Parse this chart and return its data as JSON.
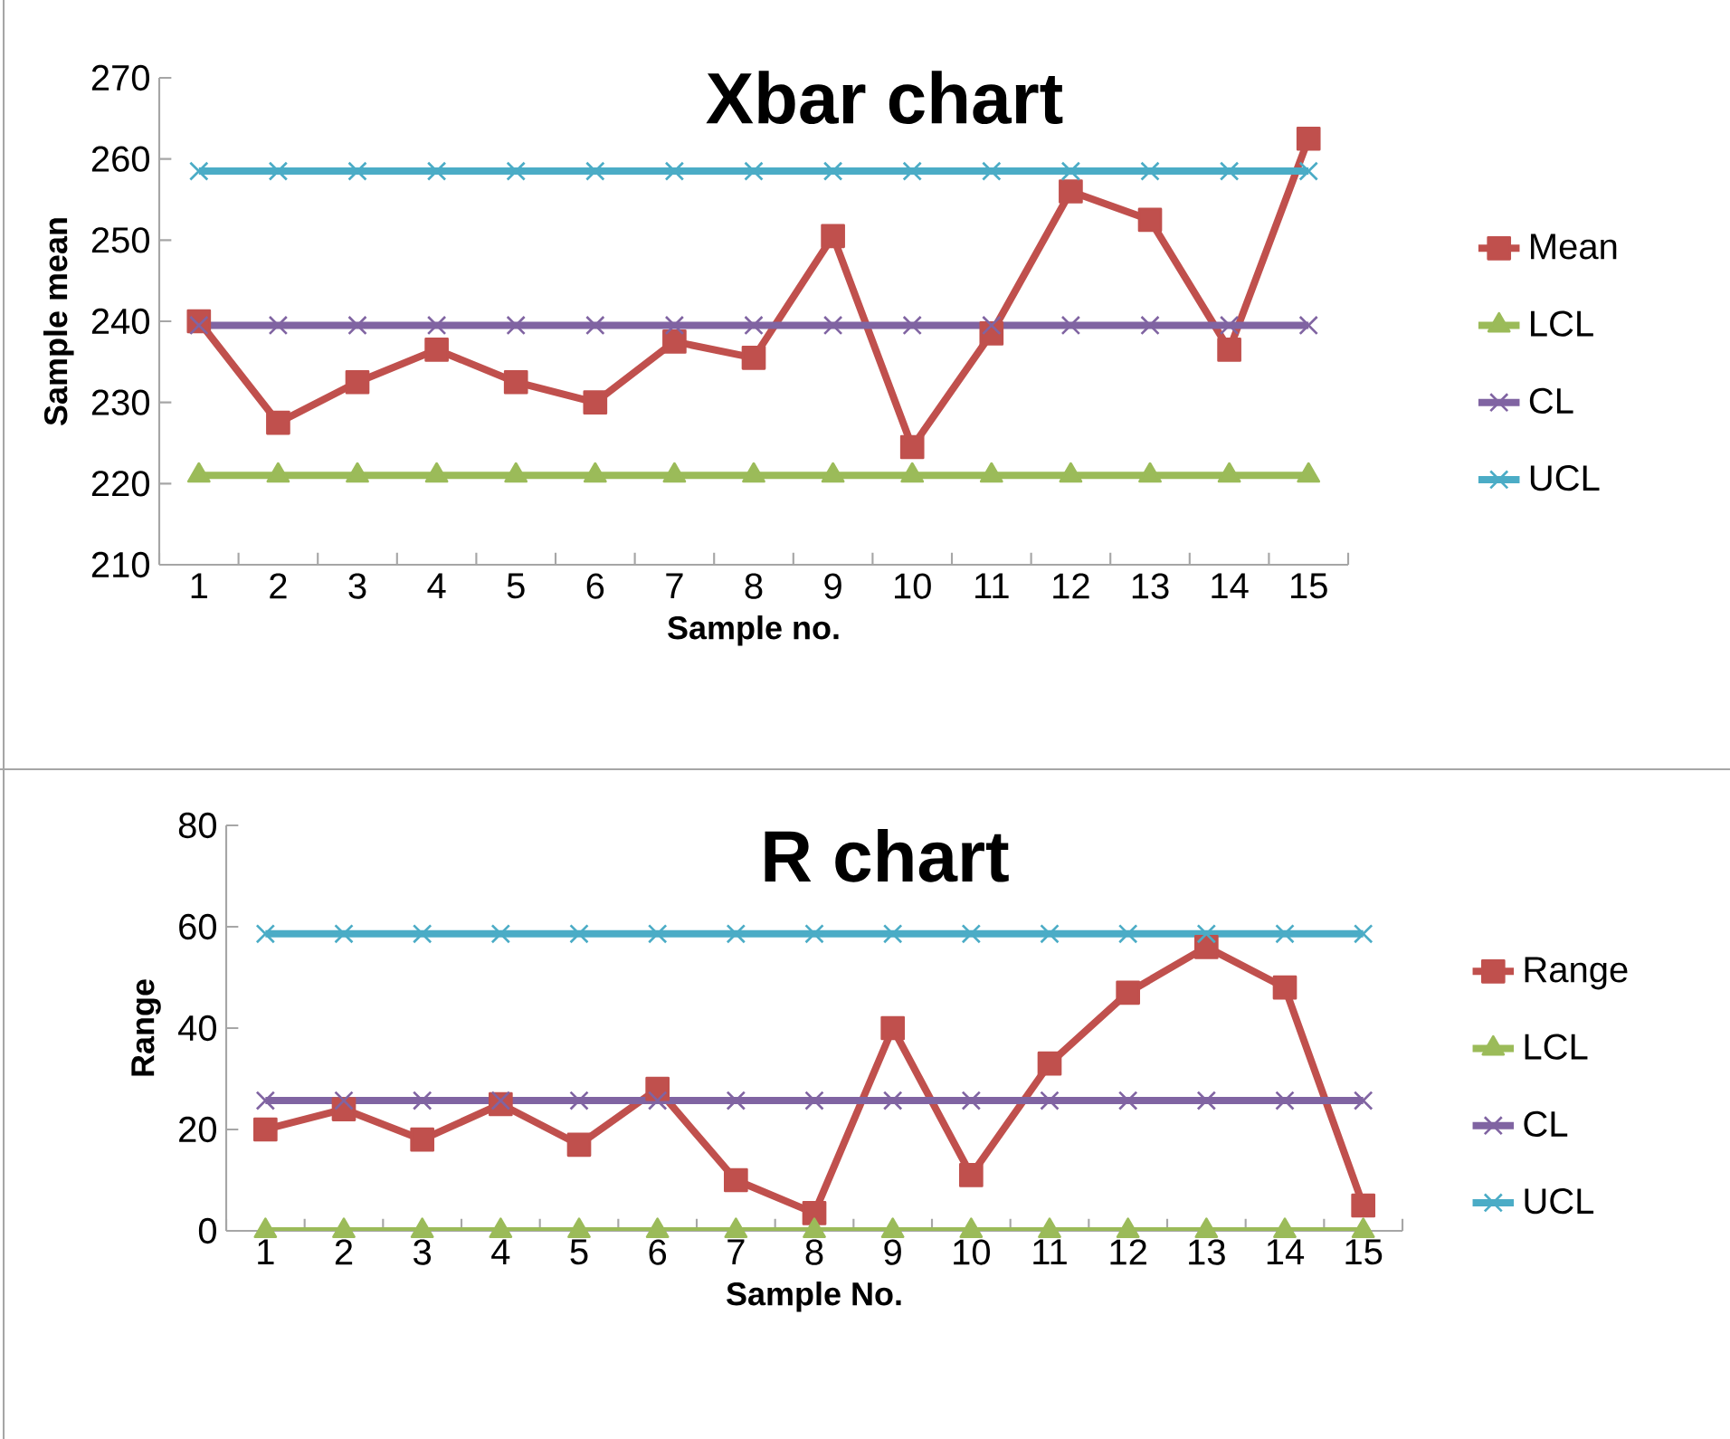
{
  "chart_data": [
    {
      "type": "line",
      "title": "Xbar chart",
      "xlabel": "Sample no.",
      "ylabel": "Sample mean",
      "categories": [
        "1",
        "2",
        "3",
        "4",
        "5",
        "6",
        "7",
        "8",
        "9",
        "10",
        "11",
        "12",
        "13",
        "14",
        "15"
      ],
      "ylim": [
        210,
        270
      ],
      "yticks": [
        210,
        220,
        230,
        240,
        250,
        260,
        270
      ],
      "grid": false,
      "legend": "right",
      "line_style": "solid",
      "series": [
        {
          "name": "Mean",
          "color": "#c0504d",
          "marker": "square",
          "values": [
            240,
            227.5,
            232.5,
            236.5,
            232.5,
            230,
            237.5,
            235.5,
            250.5,
            224.5,
            238.5,
            256,
            252.5,
            236.5,
            262.5
          ]
        },
        {
          "name": "LCL",
          "color": "#9bbb59",
          "marker": "triangle",
          "values": [
            221,
            221,
            221,
            221,
            221,
            221,
            221,
            221,
            221,
            221,
            221,
            221,
            221,
            221,
            221
          ]
        },
        {
          "name": "CL",
          "color": "#8064a2",
          "marker": "cross",
          "values": [
            239.5,
            239.5,
            239.5,
            239.5,
            239.5,
            239.5,
            239.5,
            239.5,
            239.5,
            239.5,
            239.5,
            239.5,
            239.5,
            239.5,
            239.5
          ]
        },
        {
          "name": "UCL",
          "color": "#4bacc6",
          "marker": "cross",
          "values": [
            258.5,
            258.5,
            258.5,
            258.5,
            258.5,
            258.5,
            258.5,
            258.5,
            258.5,
            258.5,
            258.5,
            258.5,
            258.5,
            258.5,
            258.5
          ]
        }
      ]
    },
    {
      "type": "line",
      "title": "R chart",
      "xlabel": "Sample No.",
      "ylabel": "Range",
      "categories": [
        "1",
        "2",
        "3",
        "4",
        "5",
        "6",
        "7",
        "8",
        "9",
        "10",
        "11",
        "12",
        "13",
        "14",
        "15"
      ],
      "ylim": [
        0,
        80
      ],
      "yticks": [
        0,
        20,
        40,
        60,
        80
      ],
      "grid": false,
      "legend": "right",
      "line_style": "solid",
      "series": [
        {
          "name": "Range",
          "color": "#c0504d",
          "marker": "square",
          "values": [
            20,
            24,
            18,
            25,
            17,
            28,
            10,
            3.5,
            40,
            11,
            33,
            47,
            56,
            48,
            5
          ]
        },
        {
          "name": "LCL",
          "color": "#9bbb59",
          "marker": "triangle",
          "values": [
            0,
            0,
            0,
            0,
            0,
            0,
            0,
            0,
            0,
            0,
            0,
            0,
            0,
            0,
            0
          ]
        },
        {
          "name": "CL",
          "color": "#8064a2",
          "marker": "cross",
          "values": [
            25.7,
            25.7,
            25.7,
            25.7,
            25.7,
            25.7,
            25.7,
            25.7,
            25.7,
            25.7,
            25.7,
            25.7,
            25.7,
            25.7,
            25.7
          ]
        },
        {
          "name": "UCL",
          "color": "#4bacc6",
          "marker": "cross",
          "values": [
            58.6,
            58.6,
            58.6,
            58.6,
            58.6,
            58.6,
            58.6,
            58.6,
            58.6,
            58.6,
            58.6,
            58.6,
            58.6,
            58.6,
            58.6
          ]
        }
      ]
    }
  ]
}
